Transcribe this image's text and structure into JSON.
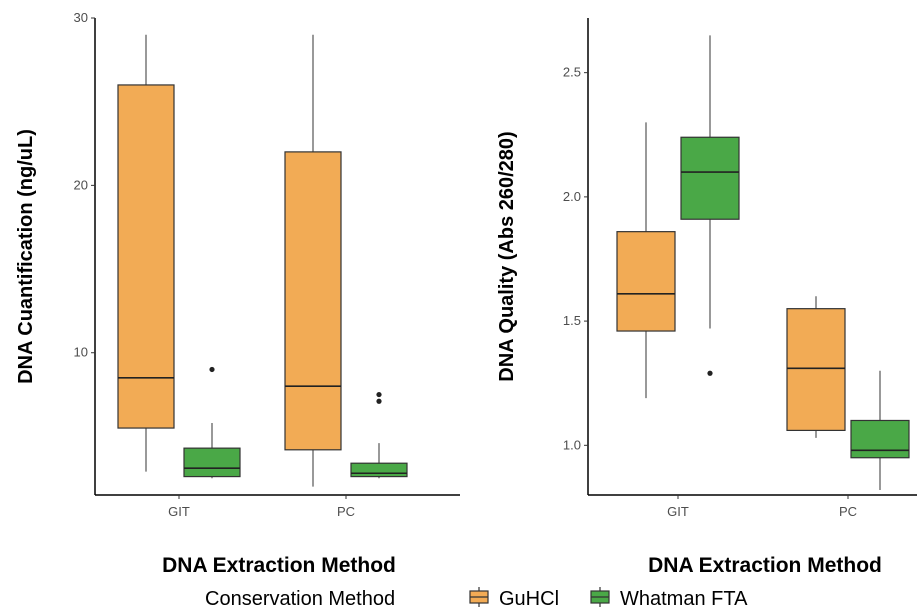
{
  "chart_data": [
    {
      "type": "boxplot",
      "xlabel": "DNA Extraction Method",
      "ylabel": "DNA Cuantification (ng/uL)",
      "categories": [
        "GIT",
        "PC"
      ],
      "ylim": [
        1.5,
        30
      ],
      "yticks": [
        10,
        20,
        30
      ],
      "series": [
        {
          "name": "GuHCl",
          "color": "#f2ab55",
          "boxes": [
            {
              "category": "GIT",
              "min": 2.9,
              "q1": 5.5,
              "median": 8.5,
              "q3": 26.0,
              "max": 29.0,
              "outliers": []
            },
            {
              "category": "PC",
              "min": 2.0,
              "q1": 4.2,
              "median": 8.0,
              "q3": 22.0,
              "max": 29.0,
              "outliers": []
            }
          ]
        },
        {
          "name": "Whatman FTA",
          "color": "#4aa847",
          "boxes": [
            {
              "category": "GIT",
              "min": 2.5,
              "q1": 2.6,
              "median": 3.1,
              "q3": 4.3,
              "max": 5.8,
              "outliers": [
                9.0
              ]
            },
            {
              "category": "PC",
              "min": 2.5,
              "q1": 2.6,
              "median": 2.8,
              "q3": 3.4,
              "max": 4.6,
              "outliers": [
                7.1,
                7.5
              ]
            }
          ]
        }
      ]
    },
    {
      "type": "boxplot",
      "xlabel": "DNA Extraction Method",
      "ylabel": "DNA Quality (Abs 260/280)",
      "categories": [
        "GIT",
        "PC"
      ],
      "ylim": [
        0.8,
        2.72
      ],
      "yticks": [
        1.0,
        1.5,
        2.0,
        2.5
      ],
      "series": [
        {
          "name": "GuHCl",
          "color": "#f2ab55",
          "boxes": [
            {
              "category": "GIT",
              "min": 1.19,
              "q1": 1.46,
              "median": 1.61,
              "q3": 1.86,
              "max": 2.3,
              "outliers": []
            },
            {
              "category": "PC",
              "min": 1.03,
              "q1": 1.06,
              "median": 1.31,
              "q3": 1.55,
              "max": 1.6,
              "outliers": []
            }
          ]
        },
        {
          "name": "Whatman FTA",
          "color": "#4aa847",
          "boxes": [
            {
              "category": "GIT",
              "min": 1.47,
              "q1": 1.91,
              "median": 2.1,
              "q3": 2.24,
              "max": 2.65,
              "outliers": [
                1.29
              ]
            },
            {
              "category": "PC",
              "min": 0.82,
              "q1": 0.95,
              "median": 0.98,
              "q3": 1.1,
              "max": 1.3,
              "outliers": []
            }
          ]
        }
      ]
    }
  ],
  "legend": {
    "title": "Conservation Method",
    "items": [
      {
        "label": "GuHCl",
        "color": "#f2ab55"
      },
      {
        "label": "Whatman FTA",
        "color": "#4aa847"
      }
    ]
  }
}
